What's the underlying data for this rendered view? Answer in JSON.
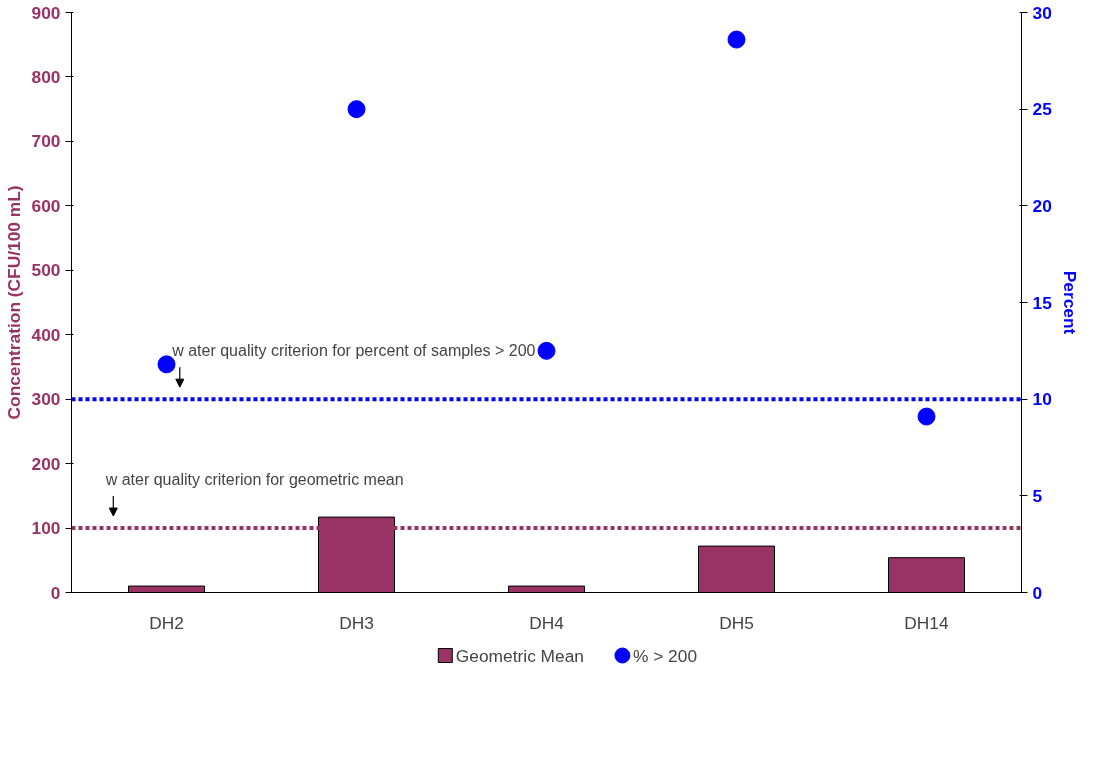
{
  "chart_data": {
    "type": "bar",
    "categories": [
      "DH2",
      "DH3",
      "DH4",
      "DH5",
      "DH14"
    ],
    "ylabel": "Concentration (CFU/100 mL)",
    "y2label": "Percent",
    "ylim": [
      0,
      900
    ],
    "yticks": [
      0,
      100,
      200,
      300,
      400,
      500,
      600,
      700,
      800,
      900
    ],
    "y2lim": [
      0,
      30
    ],
    "y2ticks": [
      0,
      5,
      10,
      15,
      20,
      25,
      30
    ],
    "series": [
      {
        "name": "Geometric Mean",
        "color": "#993366",
        "values": [
          10,
          117,
          10,
          72,
          54
        ]
      },
      {
        "name": "% > 200",
        "type": "scatter",
        "axis": "y2",
        "color": "#0000ff",
        "marker": "circle",
        "values": [
          11.8,
          25.0,
          12.5,
          28.6,
          9.1
        ]
      }
    ],
    "ref_lines": [
      {
        "axis": "y",
        "value": 100,
        "label": "w ater quality criterion for geometric mean",
        "color": "#993366",
        "line_style": "dotted"
      },
      {
        "axis": "y2",
        "value": 10,
        "label": "w ater quality criterion for percent of samples > 200",
        "color": "#0000ff",
        "line_style": "dotted"
      }
    ],
    "legend": "bottom",
    "grid": false
  }
}
